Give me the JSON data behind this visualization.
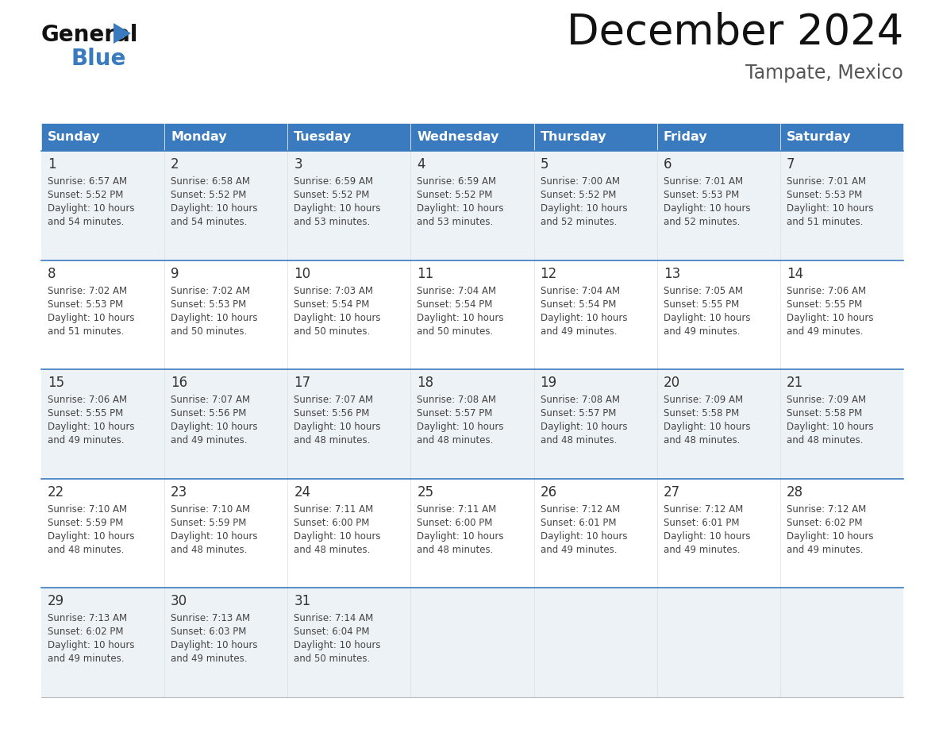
{
  "title": "December 2024",
  "subtitle": "Tampate, Mexico",
  "header_color": "#3a7bbf",
  "header_text_color": "#ffffff",
  "days_of_week": [
    "Sunday",
    "Monday",
    "Tuesday",
    "Wednesday",
    "Thursday",
    "Friday",
    "Saturday"
  ],
  "cell_bg_even": "#edf2f7",
  "cell_bg_odd": "#ffffff",
  "row_separator_color": "#3a7bbf",
  "text_color": "#444444",
  "day_number_color": "#333333",
  "calendar_data": [
    [
      {
        "day": 1,
        "sunrise": "6:57 AM",
        "sunset": "5:52 PM",
        "daylight": "10 hours and 54 minutes"
      },
      {
        "day": 2,
        "sunrise": "6:58 AM",
        "sunset": "5:52 PM",
        "daylight": "10 hours and 54 minutes"
      },
      {
        "day": 3,
        "sunrise": "6:59 AM",
        "sunset": "5:52 PM",
        "daylight": "10 hours and 53 minutes"
      },
      {
        "day": 4,
        "sunrise": "6:59 AM",
        "sunset": "5:52 PM",
        "daylight": "10 hours and 53 minutes"
      },
      {
        "day": 5,
        "sunrise": "7:00 AM",
        "sunset": "5:52 PM",
        "daylight": "10 hours and 52 minutes"
      },
      {
        "day": 6,
        "sunrise": "7:01 AM",
        "sunset": "5:53 PM",
        "daylight": "10 hours and 52 minutes"
      },
      {
        "day": 7,
        "sunrise": "7:01 AM",
        "sunset": "5:53 PM",
        "daylight": "10 hours and 51 minutes"
      }
    ],
    [
      {
        "day": 8,
        "sunrise": "7:02 AM",
        "sunset": "5:53 PM",
        "daylight": "10 hours and 51 minutes"
      },
      {
        "day": 9,
        "sunrise": "7:02 AM",
        "sunset": "5:53 PM",
        "daylight": "10 hours and 50 minutes"
      },
      {
        "day": 10,
        "sunrise": "7:03 AM",
        "sunset": "5:54 PM",
        "daylight": "10 hours and 50 minutes"
      },
      {
        "day": 11,
        "sunrise": "7:04 AM",
        "sunset": "5:54 PM",
        "daylight": "10 hours and 50 minutes"
      },
      {
        "day": 12,
        "sunrise": "7:04 AM",
        "sunset": "5:54 PM",
        "daylight": "10 hours and 49 minutes"
      },
      {
        "day": 13,
        "sunrise": "7:05 AM",
        "sunset": "5:55 PM",
        "daylight": "10 hours and 49 minutes"
      },
      {
        "day": 14,
        "sunrise": "7:06 AM",
        "sunset": "5:55 PM",
        "daylight": "10 hours and 49 minutes"
      }
    ],
    [
      {
        "day": 15,
        "sunrise": "7:06 AM",
        "sunset": "5:55 PM",
        "daylight": "10 hours and 49 minutes"
      },
      {
        "day": 16,
        "sunrise": "7:07 AM",
        "sunset": "5:56 PM",
        "daylight": "10 hours and 49 minutes"
      },
      {
        "day": 17,
        "sunrise": "7:07 AM",
        "sunset": "5:56 PM",
        "daylight": "10 hours and 48 minutes"
      },
      {
        "day": 18,
        "sunrise": "7:08 AM",
        "sunset": "5:57 PM",
        "daylight": "10 hours and 48 minutes"
      },
      {
        "day": 19,
        "sunrise": "7:08 AM",
        "sunset": "5:57 PM",
        "daylight": "10 hours and 48 minutes"
      },
      {
        "day": 20,
        "sunrise": "7:09 AM",
        "sunset": "5:58 PM",
        "daylight": "10 hours and 48 minutes"
      },
      {
        "day": 21,
        "sunrise": "7:09 AM",
        "sunset": "5:58 PM",
        "daylight": "10 hours and 48 minutes"
      }
    ],
    [
      {
        "day": 22,
        "sunrise": "7:10 AM",
        "sunset": "5:59 PM",
        "daylight": "10 hours and 48 minutes"
      },
      {
        "day": 23,
        "sunrise": "7:10 AM",
        "sunset": "5:59 PM",
        "daylight": "10 hours and 48 minutes"
      },
      {
        "day": 24,
        "sunrise": "7:11 AM",
        "sunset": "6:00 PM",
        "daylight": "10 hours and 48 minutes"
      },
      {
        "day": 25,
        "sunrise": "7:11 AM",
        "sunset": "6:00 PM",
        "daylight": "10 hours and 48 minutes"
      },
      {
        "day": 26,
        "sunrise": "7:12 AM",
        "sunset": "6:01 PM",
        "daylight": "10 hours and 49 minutes"
      },
      {
        "day": 27,
        "sunrise": "7:12 AM",
        "sunset": "6:01 PM",
        "daylight": "10 hours and 49 minutes"
      },
      {
        "day": 28,
        "sunrise": "7:12 AM",
        "sunset": "6:02 PM",
        "daylight": "10 hours and 49 minutes"
      }
    ],
    [
      {
        "day": 29,
        "sunrise": "7:13 AM",
        "sunset": "6:02 PM",
        "daylight": "10 hours and 49 minutes"
      },
      {
        "day": 30,
        "sunrise": "7:13 AM",
        "sunset": "6:03 PM",
        "daylight": "10 hours and 49 minutes"
      },
      {
        "day": 31,
        "sunrise": "7:14 AM",
        "sunset": "6:04 PM",
        "daylight": "10 hours and 50 minutes"
      },
      null,
      null,
      null,
      null
    ]
  ]
}
